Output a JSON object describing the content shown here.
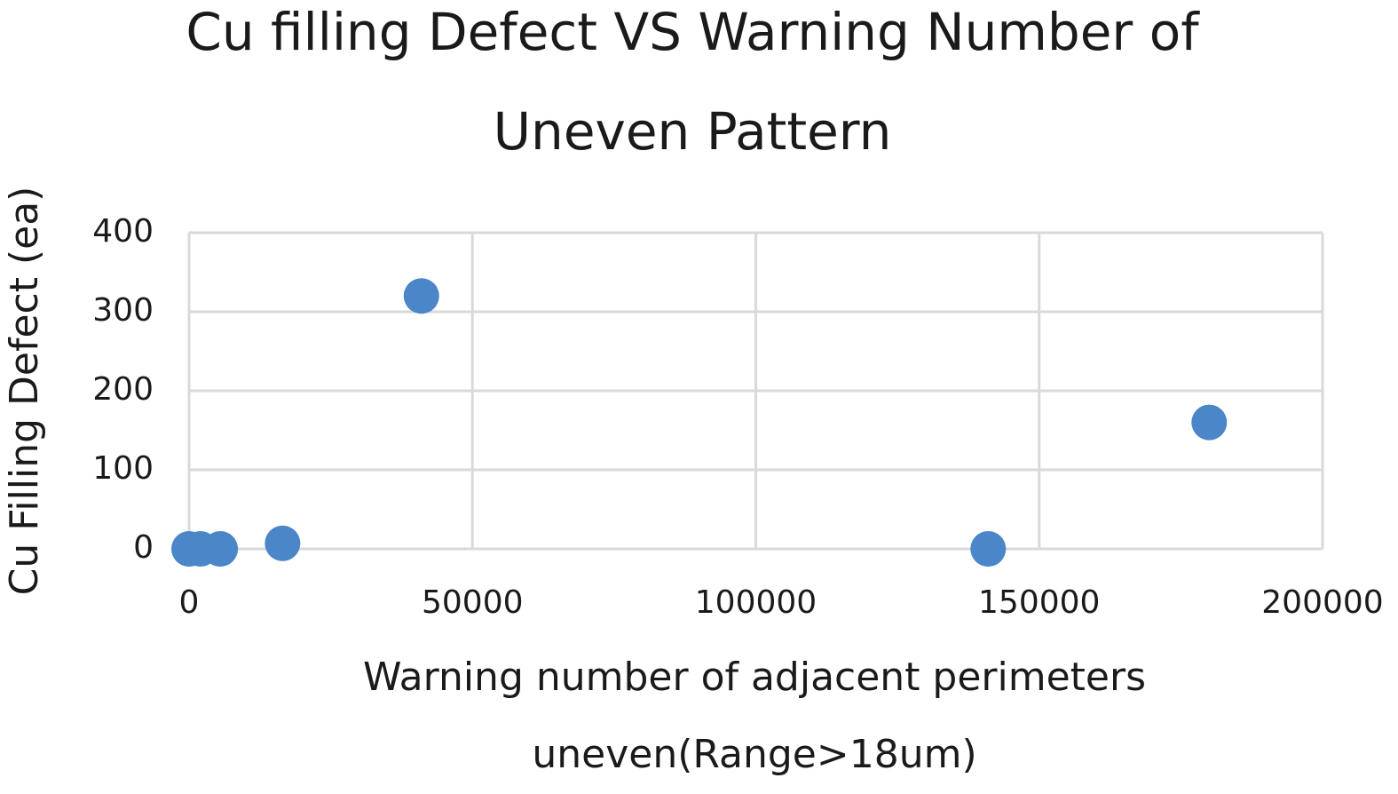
{
  "chart_data": {
    "type": "scatter",
    "title": [
      "Cu filling Defect VS Warning Number of",
      "Uneven Pattern"
    ],
    "x_label": [
      "Warning number of adjacent perimeters",
      "uneven(Range>18um)"
    ],
    "y_label": "Cu Filling Defect (ea)",
    "series": [
      {
        "color": "#4a86c8",
        "x": [
          0,
          2000,
          5500,
          16500,
          41000,
          141000,
          180000
        ],
        "values": [
          0,
          0,
          0,
          7,
          320,
          0,
          160
        ]
      }
    ],
    "xlim": [
      0,
      200000
    ],
    "xticks": [
      0,
      50000,
      100000,
      150000,
      200000
    ],
    "ylim": [
      0,
      400
    ],
    "yticks": [
      0,
      100,
      200,
      300,
      400
    ],
    "grid": true
  }
}
